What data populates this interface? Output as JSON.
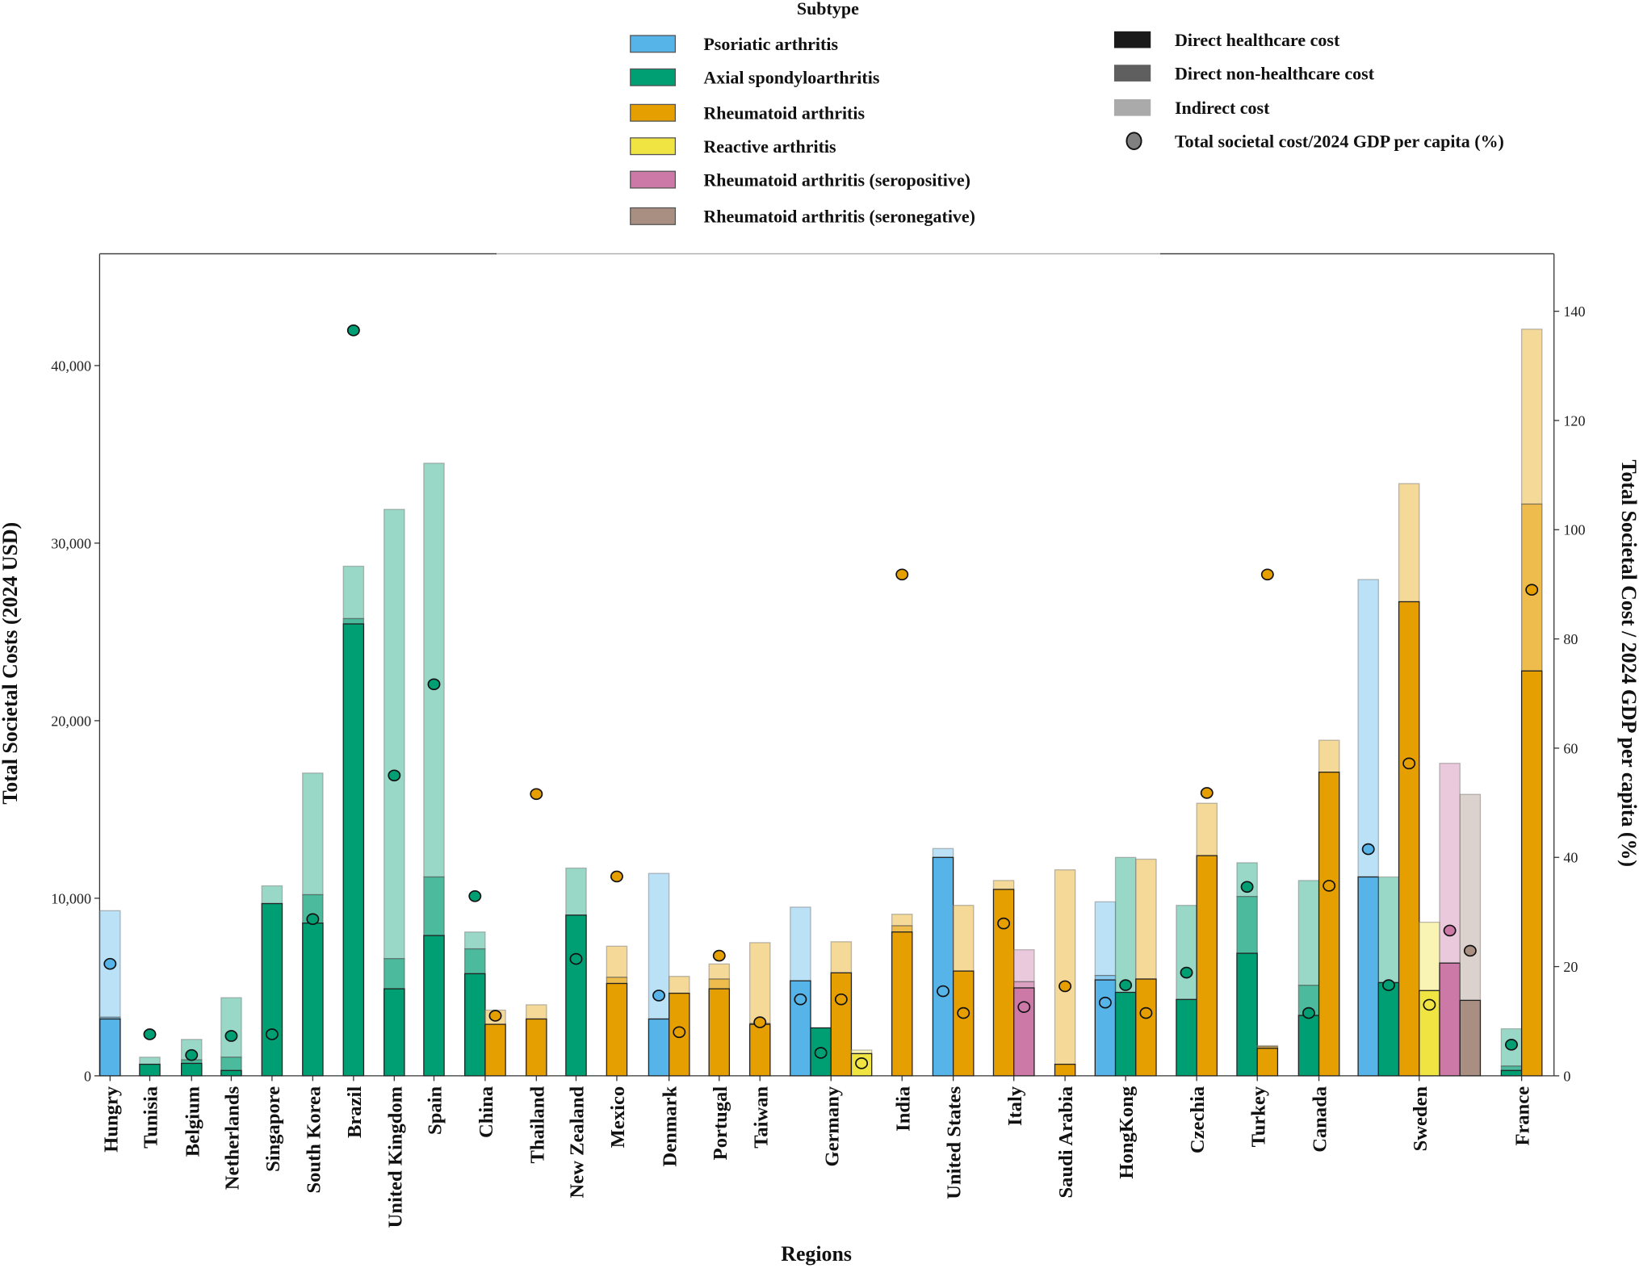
{
  "chart_data": {
    "type": "bar",
    "stacked": true,
    "xlabel": "Regions",
    "ylabel": "Total Societal Costs (2024 USD)",
    "ylabel_right": "Total Societal Cost / 2024 GDP per capita (%)",
    "ylim": [
      0,
      46500
    ],
    "ylim_right": [
      0,
      150
    ],
    "yticks": [
      "0",
      "10,000",
      "20,000",
      "30,000",
      "40,000"
    ],
    "yticks_values": [
      0,
      10000,
      20000,
      30000,
      40000
    ],
    "yticks_right": [
      "0",
      "20",
      "40",
      "60",
      "80",
      "100",
      "120",
      "140"
    ],
    "grid": false,
    "legend": {
      "title": "Subtype",
      "placement": "top",
      "subtypes": [
        {
          "key": "psa",
          "label": "Psoriatic arthritis",
          "color": "#56B4E9"
        },
        {
          "key": "axspa",
          "label": "Axial spondyloarthritis",
          "color": "#009E73"
        },
        {
          "key": "ra",
          "label": "Rheumatoid arthritis",
          "color": "#E69F00"
        },
        {
          "key": "rea",
          "label": "Reactive arthritis",
          "color": "#F0E442"
        },
        {
          "key": "ra_pos",
          "label": "Rheumatoid arthritis (seropositive)",
          "color": "#CC79A7"
        },
        {
          "key": "ra_neg",
          "label": "Rheumatoid arthritis (seronegative)",
          "color": "#A88F82"
        }
      ],
      "components": [
        {
          "label": "Direct healthcare cost",
          "color": "#1a1a1a"
        },
        {
          "label": "Direct non-healthcare cost",
          "color": "#5f5f5f"
        },
        {
          "label": "Indirect cost",
          "color": "#aaaaaa"
        },
        {
          "label": "Total societal cost/2024 GDP per capita (%)",
          "color": "#808080"
        }
      ]
    },
    "countries": [
      {
        "name": "Hungry",
        "bars": [
          {
            "subtype": "psa",
            "direct_healthcare": 3200,
            "direct_non_healthcare": 100,
            "indirect": 6000,
            "gdp_pct": 20.5
          }
        ]
      },
      {
        "name": "Tunisia",
        "bars": [
          {
            "subtype": "axspa",
            "direct_healthcare": 650,
            "direct_non_healthcare": 0,
            "indirect": 400,
            "gdp_pct": 7.6
          }
        ]
      },
      {
        "name": "Belgium",
        "bars": [
          {
            "subtype": "axspa",
            "direct_healthcare": 700,
            "direct_non_healthcare": 200,
            "indirect": 1150,
            "gdp_pct": 3.8
          }
        ]
      },
      {
        "name": "Netherlands",
        "bars": [
          {
            "subtype": "axspa",
            "direct_healthcare": 300,
            "direct_non_healthcare": 750,
            "indirect": 3350,
            "gdp_pct": 7.3
          }
        ]
      },
      {
        "name": "Singapore",
        "bars": [
          {
            "subtype": "axspa",
            "direct_healthcare": 9700,
            "direct_non_healthcare": 0,
            "indirect": 1000,
            "gdp_pct": 7.6
          }
        ]
      },
      {
        "name": "South Korea",
        "bars": [
          {
            "subtype": "axspa",
            "direct_healthcare": 8600,
            "direct_non_healthcare": 1600,
            "indirect": 6850,
            "gdp_pct": 28.7
          }
        ]
      },
      {
        "name": "Brazil",
        "bars": [
          {
            "subtype": "axspa",
            "direct_healthcare": 25450,
            "direct_non_healthcare": 300,
            "indirect": 2950,
            "gdp_pct": 136.5
          }
        ]
      },
      {
        "name": "United Kingdom",
        "bars": [
          {
            "subtype": "axspa",
            "direct_healthcare": 4900,
            "direct_non_healthcare": 1700,
            "indirect": 25300,
            "gdp_pct": 55
          }
        ]
      },
      {
        "name": "Spain",
        "bars": [
          {
            "subtype": "axspa",
            "direct_healthcare": 7900,
            "direct_non_healthcare": 3300,
            "indirect": 23300,
            "gdp_pct": 71.7
          }
        ]
      },
      {
        "name": "China",
        "bars": [
          {
            "subtype": "axspa",
            "direct_healthcare": 5750,
            "direct_non_healthcare": 1400,
            "indirect": 950,
            "gdp_pct": 32.9
          },
          {
            "subtype": "ra",
            "direct_healthcare": 2900,
            "direct_non_healthcare": 0,
            "indirect": 800,
            "gdp_pct": 11
          }
        ]
      },
      {
        "name": "Thailand",
        "bars": [
          {
            "subtype": "ra",
            "direct_healthcare": 3200,
            "direct_non_healthcare": 0,
            "indirect": 800,
            "gdp_pct": 51.6
          }
        ]
      },
      {
        "name": "New Zealand",
        "bars": [
          {
            "subtype": "axspa",
            "direct_healthcare": 9050,
            "direct_non_healthcare": 0,
            "indirect": 2650,
            "gdp_pct": 21.4
          }
        ]
      },
      {
        "name": "Mexico",
        "bars": [
          {
            "subtype": "ra",
            "direct_healthcare": 5200,
            "direct_non_healthcare": 350,
            "indirect": 1750,
            "gdp_pct": 36.5
          }
        ]
      },
      {
        "name": "Denmark",
        "bars": [
          {
            "subtype": "psa",
            "direct_healthcare": 3200,
            "direct_non_healthcare": 0,
            "indirect": 8200,
            "gdp_pct": 14.7
          },
          {
            "subtype": "ra",
            "direct_healthcare": 4650,
            "direct_non_healthcare": 0,
            "indirect": 950,
            "gdp_pct": 8
          }
        ]
      },
      {
        "name": "Portugal",
        "bars": [
          {
            "subtype": "ra",
            "direct_healthcare": 4900,
            "direct_non_healthcare": 550,
            "indirect": 850,
            "gdp_pct": 22
          }
        ]
      },
      {
        "name": "Taiwan",
        "bars": [
          {
            "subtype": "ra",
            "direct_healthcare": 2900,
            "direct_non_healthcare": 50,
            "indirect": 4550,
            "gdp_pct": 9.8
          }
        ]
      },
      {
        "name": "Germany",
        "bars": [
          {
            "subtype": "psa",
            "direct_healthcare": 5350,
            "direct_non_healthcare": 0,
            "indirect": 4150,
            "gdp_pct": 14
          },
          {
            "subtype": "axspa",
            "direct_healthcare": 2700,
            "direct_non_healthcare": 0,
            "indirect": 0,
            "gdp_pct": 4.2
          },
          {
            "subtype": "ra",
            "direct_healthcare": 5800,
            "direct_non_healthcare": 0,
            "indirect": 1750,
            "gdp_pct": 14
          },
          {
            "subtype": "rea",
            "direct_healthcare": 1250,
            "direct_non_healthcare": 0,
            "indirect": 200,
            "gdp_pct": 2.3
          }
        ]
      },
      {
        "name": "India",
        "bars": [
          {
            "subtype": "ra",
            "direct_healthcare": 8100,
            "direct_non_healthcare": 350,
            "indirect": 650,
            "gdp_pct": 91.8
          }
        ]
      },
      {
        "name": "United States",
        "bars": [
          {
            "subtype": "psa",
            "direct_healthcare": 12300,
            "direct_non_healthcare": 0,
            "indirect": 500,
            "gdp_pct": 15.5
          },
          {
            "subtype": "ra",
            "direct_healthcare": 5900,
            "direct_non_healthcare": 0,
            "indirect": 3700,
            "gdp_pct": 11.5
          }
        ]
      },
      {
        "name": "Italy",
        "bars": [
          {
            "subtype": "ra",
            "direct_healthcare": 10500,
            "direct_non_healthcare": 0,
            "indirect": 500,
            "gdp_pct": 27.9
          },
          {
            "subtype": "ra_pos",
            "direct_healthcare": 4950,
            "direct_non_healthcare": 350,
            "indirect": 1800,
            "gdp_pct": 12.6
          }
        ]
      },
      {
        "name": "Saudi Arabia",
        "bars": [
          {
            "subtype": "ra",
            "direct_healthcare": 650,
            "direct_non_healthcare": 0,
            "indirect": 10950,
            "gdp_pct": 16.4
          }
        ]
      },
      {
        "name": "HongKong",
        "bars": [
          {
            "subtype": "psa",
            "direct_healthcare": 5400,
            "direct_non_healthcare": 250,
            "indirect": 4150,
            "gdp_pct": 13.4
          },
          {
            "subtype": "axspa",
            "direct_healthcare": 4700,
            "direct_non_healthcare": 0,
            "indirect": 7600,
            "gdp_pct": 16.6
          },
          {
            "subtype": "ra",
            "direct_healthcare": 5450,
            "direct_non_healthcare": 0,
            "indirect": 6750,
            "gdp_pct": 11.5
          }
        ]
      },
      {
        "name": "Czechia",
        "bars": [
          {
            "subtype": "axspa",
            "direct_healthcare": 4300,
            "direct_non_healthcare": 0,
            "indirect": 5300,
            "gdp_pct": 18.9
          },
          {
            "subtype": "ra",
            "direct_healthcare": 12400,
            "direct_non_healthcare": 0,
            "indirect": 2950,
            "gdp_pct": 51.8
          }
        ]
      },
      {
        "name": "Turkey",
        "bars": [
          {
            "subtype": "axspa",
            "direct_healthcare": 6900,
            "direct_non_healthcare": 3200,
            "indirect": 1900,
            "gdp_pct": 34.6
          },
          {
            "subtype": "ra",
            "direct_healthcare": 1550,
            "direct_non_healthcare": 100,
            "indirect": 50,
            "gdp_pct": 91.8
          }
        ]
      },
      {
        "name": "Canada",
        "bars": [
          {
            "subtype": "axspa",
            "direct_healthcare": 3400,
            "direct_non_healthcare": 1700,
            "indirect": 5900,
            "gdp_pct": 11.5
          },
          {
            "subtype": "ra",
            "direct_healthcare": 17100,
            "direct_non_healthcare": 0,
            "indirect": 1800,
            "gdp_pct": 34.8
          }
        ]
      },
      {
        "name": "Sweden",
        "bars": [
          {
            "subtype": "psa",
            "direct_healthcare": 11200,
            "direct_non_healthcare": 0,
            "indirect": 16750,
            "gdp_pct": 41.5
          },
          {
            "subtype": "axspa",
            "direct_healthcare": 5250,
            "direct_non_healthcare": 0,
            "indirect": 5950,
            "gdp_pct": 16.6
          },
          {
            "subtype": "ra",
            "direct_healthcare": 26700,
            "direct_non_healthcare": 0,
            "indirect": 6650,
            "gdp_pct": 57.2
          },
          {
            "subtype": "rea",
            "direct_healthcare": 4800,
            "direct_non_healthcare": 0,
            "indirect": 3850,
            "gdp_pct": 13
          },
          {
            "subtype": "ra_pos",
            "direct_healthcare": 6350,
            "direct_non_healthcare": 0,
            "indirect": 11250,
            "gdp_pct": 26.6
          },
          {
            "subtype": "ra_neg",
            "direct_healthcare": 4250,
            "direct_non_healthcare": 0,
            "indirect": 11600,
            "gdp_pct": 22.9
          }
        ]
      },
      {
        "name": "France",
        "bars": [
          {
            "subtype": "axspa",
            "direct_healthcare": 300,
            "direct_non_healthcare": 250,
            "indirect": 2100,
            "gdp_pct": 5.7
          },
          {
            "subtype": "ra",
            "direct_healthcare": 22800,
            "direct_non_healthcare": 9400,
            "indirect": 9850,
            "gdp_pct": 89
          }
        ]
      }
    ]
  }
}
